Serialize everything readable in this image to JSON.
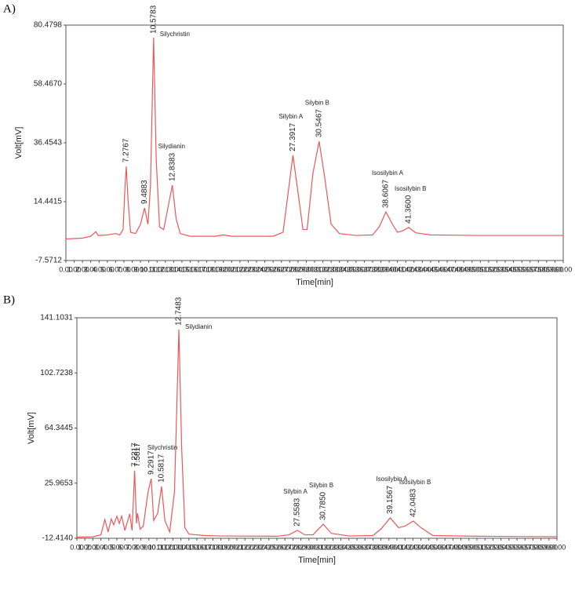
{
  "chart_data": [
    {
      "type": "line",
      "panel_label": "A)",
      "xlabel": "Time[min]",
      "ylabel": "Volt[mV]",
      "color": "#e8585a",
      "ylim": [
        -7.5712,
        80.4798
      ],
      "yticks": [
        -7.5712,
        14.4415,
        36.4543,
        {
          "value": 58.467,
          "label": "58.4670"
        },
        80.4798
      ],
      "xlim": [
        0,
        60
      ],
      "xticks": [
        {
          "value": 0,
          "label": "0.00"
        },
        {
          "value": 1,
          "label": "1.00"
        },
        {
          "value": 2,
          "label": "2.00"
        },
        {
          "value": 3,
          "label": "3.00"
        },
        {
          "value": 4,
          "label": "4.00"
        },
        {
          "value": 5,
          "label": "5.00"
        },
        {
          "value": 6,
          "label": "6.00"
        },
        {
          "value": 7,
          "label": "7.00"
        },
        {
          "value": 8,
          "label": "8.00"
        },
        {
          "value": 9,
          "label": "9.00"
        },
        {
          "value": 10,
          "label": "10.00"
        },
        {
          "value": 11,
          "label": "11.00"
        },
        {
          "value": 12,
          "label": "12.00"
        },
        {
          "value": 13,
          "label": "13.00"
        },
        {
          "value": 14,
          "label": "14.00"
        },
        {
          "value": 15,
          "label": "15.00"
        },
        {
          "value": 16,
          "label": "16.00"
        },
        {
          "value": 17,
          "label": "17.00"
        },
        {
          "value": 18,
          "label": "18.00"
        },
        {
          "value": 19,
          "label": "19.00"
        },
        {
          "value": 20,
          "label": "20.00"
        },
        {
          "value": 21,
          "label": "21.00"
        },
        {
          "value": 22,
          "label": "22.00"
        },
        {
          "value": 23,
          "label": "23.00"
        },
        {
          "value": 24,
          "label": "24.00"
        },
        {
          "value": 25,
          "label": "25.00"
        },
        {
          "value": 26,
          "label": "26.00"
        },
        {
          "value": 27,
          "label": "27.00"
        },
        {
          "value": 28,
          "label": "28.00"
        },
        {
          "value": 29,
          "label": "29.00"
        },
        {
          "value": 30,
          "label": "30.00"
        },
        {
          "value": 31,
          "label": "31.00"
        },
        {
          "value": 32,
          "label": "32.00"
        },
        {
          "value": 33,
          "label": "33.00"
        },
        {
          "value": 34,
          "label": "34.00"
        },
        {
          "value": 35,
          "label": "35.00"
        },
        {
          "value": 36,
          "label": "36.00"
        },
        {
          "value": 37,
          "label": "37.00"
        },
        {
          "value": 38,
          "label": "38.00"
        },
        {
          "value": 39,
          "label": "39.00"
        },
        {
          "value": 40,
          "label": "40.00"
        },
        {
          "value": 41,
          "label": "41.00"
        },
        {
          "value": 42,
          "label": "42.00"
        },
        {
          "value": 43,
          "label": "43.00"
        },
        {
          "value": 44,
          "label": "44.00"
        },
        {
          "value": 45,
          "label": "45.00"
        },
        {
          "value": 46,
          "label": "46.00"
        },
        {
          "value": 47,
          "label": "47.00"
        },
        {
          "value": 48,
          "label": "48.00"
        },
        {
          "value": 49,
          "label": "49.00"
        },
        {
          "value": 50,
          "label": "50.00"
        },
        {
          "value": 51,
          "label": "51.00"
        },
        {
          "value": 52,
          "label": "52.00"
        },
        {
          "value": 53,
          "label": "53.00"
        },
        {
          "value": 54,
          "label": "54.00"
        },
        {
          "value": 55,
          "label": "55.00"
        },
        {
          "value": 56,
          "label": "56.00"
        },
        {
          "value": 57,
          "label": "57.00"
        },
        {
          "value": 58,
          "label": "58.00"
        },
        {
          "value": 59,
          "label": "59.00"
        },
        {
          "value": 60,
          "label": "60.00"
        }
      ],
      "x": [
        0,
        2,
        3,
        3.6,
        3.9,
        5,
        6,
        6.5,
        6.9,
        7.1,
        7.28,
        7.5,
        7.8,
        8.4,
        9.0,
        9.49,
        9.9,
        10.2,
        10.58,
        10.9,
        11.3,
        11.8,
        12.3,
        12.84,
        13.3,
        13.8,
        15,
        18,
        19,
        20,
        25,
        26.2,
        26.7,
        27.39,
        28.0,
        28.6,
        29.1,
        29.8,
        30.55,
        31.2,
        32,
        33,
        35,
        37,
        37.8,
        38.61,
        39.4,
        40,
        40.6,
        41.36,
        42.2,
        44,
        50,
        60
      ],
      "values": [
        0.5,
        0.8,
        1.5,
        3.2,
        1.8,
        2.0,
        2.5,
        2.0,
        4,
        18,
        27.6,
        15,
        3,
        2.5,
        6,
        12.1,
        6,
        20,
        75.8,
        30,
        5,
        4,
        12,
        20.6,
        8,
        2.5,
        1.5,
        1.5,
        2.0,
        1.5,
        1.5,
        3,
        15,
        31.8,
        18,
        4,
        4,
        25,
        37.0,
        24,
        6,
        2.5,
        1.8,
        2,
        5,
        10.6,
        6,
        3,
        3.5,
        4.8,
        2.8,
        2,
        1.8,
        1.8
      ],
      "peaks": {
        "times": [
          7.2767,
          9.4883,
          10.5783,
          12.8383,
          27.3917,
          30.5467,
          38.6067,
          41.36
        ],
        "time_labels": [
          "7.2767",
          "9.4883",
          "10.5783",
          "12.8383",
          "27.3917",
          "30.5467",
          "38.6067",
          "41.3600"
        ],
        "names": [
          null,
          null,
          "Silychristin",
          "Silydianin",
          "Silybin A",
          "Silybin B",
          "Isosilybin A",
          "Isosilybin B"
        ]
      }
    },
    {
      "type": "line",
      "panel_label": "B)",
      "xlabel": "Time[min]",
      "ylabel": "Volt[mV]",
      "color": "#e8585a",
      "ylim": [
        -12.414,
        141.1031
      ],
      "yticks": [
        {
          "value": -12.414,
          "label": "-12.4140"
        },
        25.9653,
        64.3445,
        102.7238,
        141.1031
      ],
      "xlim": [
        0,
        60
      ],
      "xticks": [
        {
          "value": 0,
          "label": "0.00"
        },
        {
          "value": 1,
          "label": "1.00"
        },
        {
          "value": 2,
          "label": "2.00"
        },
        {
          "value": 3,
          "label": "3.00"
        },
        {
          "value": 4,
          "label": "4.00"
        },
        {
          "value": 5,
          "label": "5.00"
        },
        {
          "value": 6,
          "label": "6.00"
        },
        {
          "value": 7,
          "label": "7.00"
        },
        {
          "value": 8,
          "label": "8.00"
        },
        {
          "value": 9,
          "label": "9.00"
        },
        {
          "value": 10,
          "label": "10.00"
        },
        {
          "value": 11,
          "label": "11.00"
        },
        {
          "value": 12,
          "label": "12.00"
        },
        {
          "value": 13,
          "label": "13.00"
        },
        {
          "value": 14,
          "label": "14.00"
        },
        {
          "value": 15,
          "label": "15.00"
        },
        {
          "value": 16,
          "label": "16.00"
        },
        {
          "value": 17,
          "label": "17.00"
        },
        {
          "value": 18,
          "label": "18.00"
        },
        {
          "value": 19,
          "label": "19.00"
        },
        {
          "value": 20,
          "label": "20.00"
        },
        {
          "value": 21,
          "label": "21.00"
        },
        {
          "value": 22,
          "label": "22.00"
        },
        {
          "value": 23,
          "label": "23.00"
        },
        {
          "value": 24,
          "label": "24.00"
        },
        {
          "value": 25,
          "label": "25.00"
        },
        {
          "value": 26,
          "label": "26.00"
        },
        {
          "value": 27,
          "label": "27.00"
        },
        {
          "value": 28,
          "label": "28.00"
        },
        {
          "value": 29,
          "label": "29.00"
        },
        {
          "value": 30,
          "label": "30.00"
        },
        {
          "value": 31,
          "label": "31.00"
        },
        {
          "value": 32,
          "label": "32.00"
        },
        {
          "value": 33,
          "label": "33.00"
        },
        {
          "value": 34,
          "label": "34.00"
        },
        {
          "value": 35,
          "label": "35.00"
        },
        {
          "value": 36,
          "label": "36.00"
        },
        {
          "value": 37,
          "label": "37.00"
        },
        {
          "value": 38,
          "label": "38.00"
        },
        {
          "value": 39,
          "label": "39.00"
        },
        {
          "value": 40,
          "label": "40.00"
        },
        {
          "value": 41,
          "label": "41.00"
        },
        {
          "value": 42,
          "label": "42.00"
        },
        {
          "value": 43,
          "label": "43.00"
        },
        {
          "value": 44,
          "label": "44.00"
        },
        {
          "value": 45,
          "label": "45.00"
        },
        {
          "value": 46,
          "label": "46.00"
        },
        {
          "value": 47,
          "label": "47.00"
        },
        {
          "value": 48,
          "label": "48.00"
        },
        {
          "value": 49,
          "label": "49.00"
        },
        {
          "value": 50,
          "label": "50.00"
        },
        {
          "value": 51,
          "label": "51.00"
        },
        {
          "value": 52,
          "label": "52.00"
        },
        {
          "value": 53,
          "label": "53.00"
        },
        {
          "value": 54,
          "label": "54.00"
        },
        {
          "value": 55,
          "label": "55.00"
        },
        {
          "value": 56,
          "label": "56.00"
        },
        {
          "value": 57,
          "label": "57.00"
        },
        {
          "value": 58,
          "label": "58.00"
        },
        {
          "value": 59,
          "label": "59.00"
        },
        {
          "value": 60,
          "label": "60.00"
        }
      ],
      "x": [
        0,
        2,
        3,
        3.5,
        3.9,
        4.3,
        4.6,
        5.0,
        5.3,
        5.6,
        6.0,
        6.6,
        6.9,
        7.22,
        7.45,
        7.58,
        7.9,
        8.3,
        8.9,
        9.29,
        9.6,
        10.1,
        10.58,
        11.0,
        11.6,
        12.2,
        12.75,
        13.1,
        13.5,
        14,
        16,
        18,
        25,
        26.5,
        27.56,
        28.5,
        29.5,
        30.79,
        31.8,
        34,
        37,
        38,
        39.16,
        40.2,
        41,
        42.05,
        43,
        44.5,
        50,
        60
      ],
      "values": [
        -11.6,
        -11.4,
        -10,
        0.7,
        -8,
        1,
        -3,
        2.9,
        -2,
        3,
        -7,
        4.5,
        -7,
        34.6,
        -2,
        5.1,
        -6,
        -4,
        20,
        29.1,
        0,
        5,
        23.7,
        0,
        -8,
        20,
        133,
        50,
        -5,
        -9.5,
        -10.5,
        -10.8,
        -11,
        -10,
        -6.9,
        -10,
        -10,
        -2.6,
        -9,
        -10.8,
        -10.5,
        -6,
        1.8,
        -5,
        -4,
        -0.4,
        -5,
        -10.5,
        -11,
        -11.3
      ],
      "peaks": {
        "times": [
          7.2217,
          7.5817,
          9.2917,
          10.5817,
          12.7483,
          27.5583,
          30.785,
          39.1567,
          42.0483
        ],
        "time_labels": [
          "7.2217",
          "7.5817",
          "9.2917",
          "10.5817",
          "12.7483",
          "27.5583",
          "30.7850",
          "39.1567",
          "42.0483"
        ],
        "names": [
          null,
          null,
          null,
          "Silychristin",
          "Silydianin",
          "Silybin A",
          "Silybin B",
          "Isosilybin A",
          "Isosilybin B"
        ]
      }
    }
  ]
}
